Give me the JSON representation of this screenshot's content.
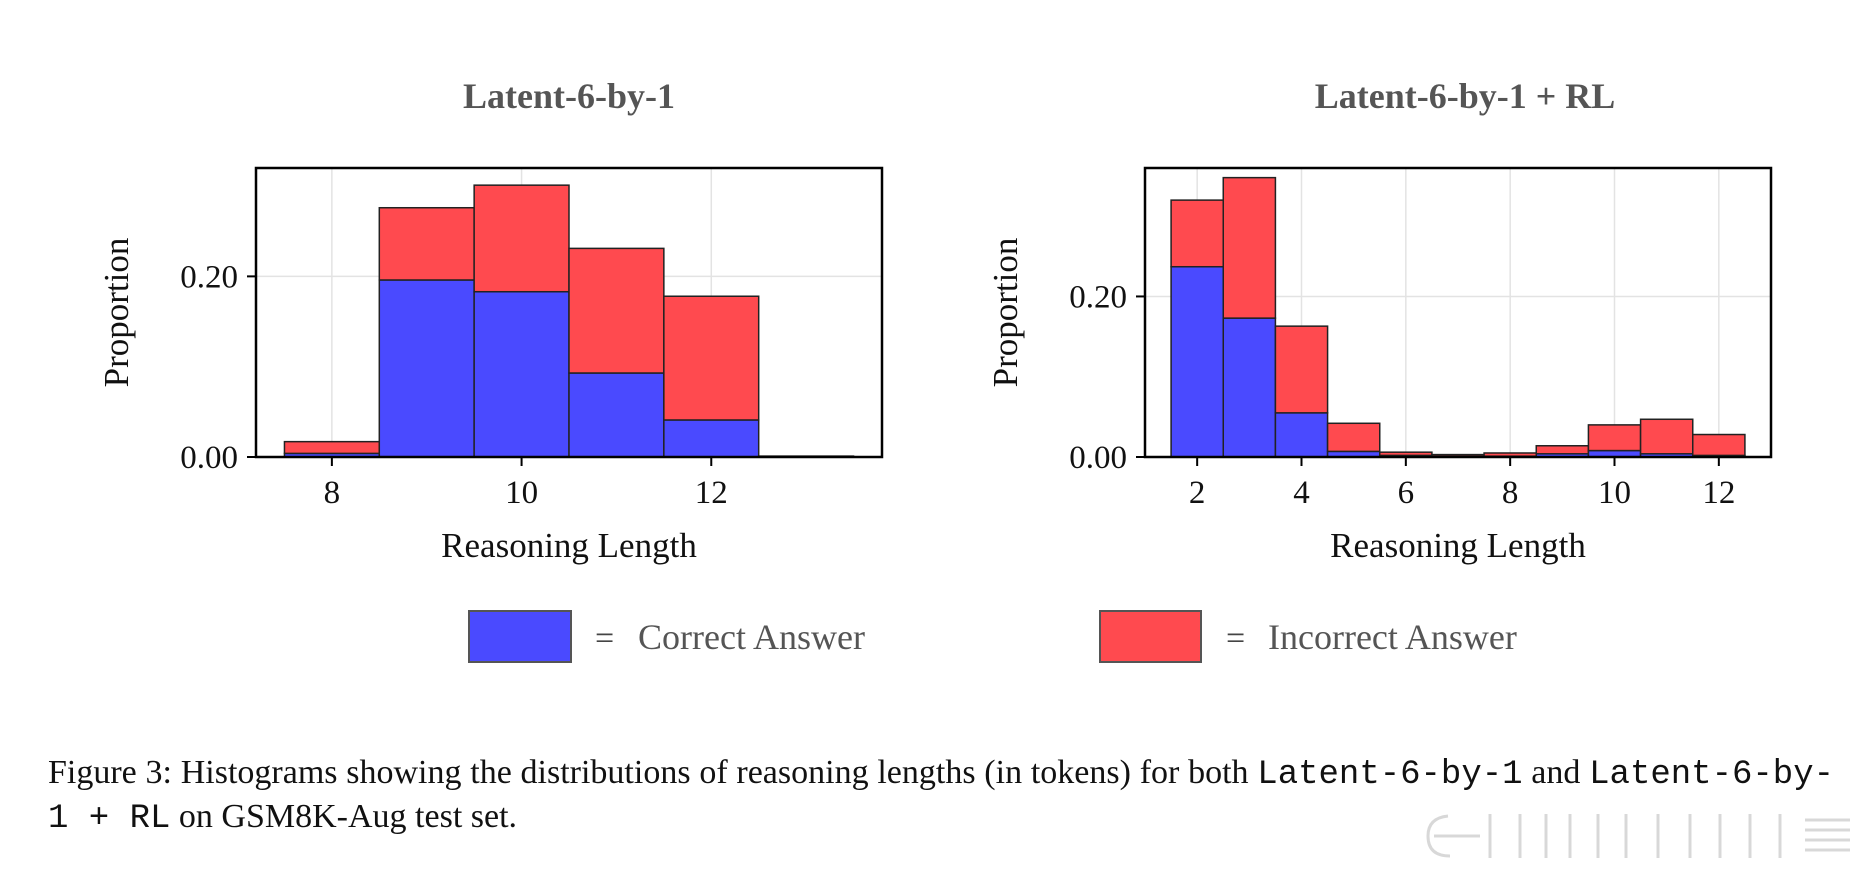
{
  "chart_data": [
    {
      "type": "bar",
      "stacked": true,
      "title": "Latent-6-by-1",
      "xlabel": "Reasoning Length",
      "ylabel": "Proportion",
      "xlim": [
        7.2,
        13.8
      ],
      "ylim": [
        0,
        0.32
      ],
      "xticks": [
        "8",
        "10",
        "12"
      ],
      "xtick_values": [
        8,
        10,
        12
      ],
      "yticks": [
        "0.00",
        "0.20"
      ],
      "ytick_values": [
        0.0,
        0.2
      ],
      "grid": true,
      "categories": [
        8,
        9,
        10,
        11,
        12,
        13
      ],
      "series": [
        {
          "name": "Correct Answer",
          "values": [
            0.004,
            0.196,
            0.183,
            0.093,
            0.041,
            0.0
          ]
        },
        {
          "name": "Incorrect Answer",
          "values": [
            0.013,
            0.08,
            0.118,
            0.138,
            0.137,
            0.001
          ]
        }
      ]
    },
    {
      "type": "bar",
      "stacked": true,
      "title": "Latent-6-by-1 + RL",
      "xlabel": "Reasoning Length",
      "ylabel": "Proportion",
      "xlim": [
        1.0,
        13.0
      ],
      "ylim": [
        0,
        0.36
      ],
      "xticks": [
        "2",
        "4",
        "6",
        "8",
        "10",
        "12"
      ],
      "xtick_values": [
        2,
        4,
        6,
        8,
        10,
        12
      ],
      "yticks": [
        "0.00",
        "0.20"
      ],
      "ytick_values": [
        0.0,
        0.2
      ],
      "grid": true,
      "categories": [
        2,
        3,
        4,
        5,
        6,
        7,
        8,
        9,
        10,
        11,
        12
      ],
      "series": [
        {
          "name": "Correct Answer",
          "values": [
            0.237,
            0.173,
            0.055,
            0.007,
            0.002,
            0.001,
            0.001,
            0.004,
            0.008,
            0.004,
            0.002
          ]
        },
        {
          "name": "Incorrect Answer",
          "values": [
            0.083,
            0.175,
            0.108,
            0.035,
            0.004,
            0.002,
            0.004,
            0.01,
            0.032,
            0.043,
            0.026
          ]
        }
      ]
    }
  ],
  "legend": {
    "items": [
      {
        "label": "Correct Answer",
        "color": "#4a4aff"
      },
      {
        "label": "Incorrect Answer",
        "color": "#ff4a4f"
      }
    ],
    "separator": "="
  },
  "colors": {
    "correct": "#4a4aff",
    "incorrect": "#ff4a4f",
    "grid": "#e3e3e3",
    "edge": "#222222"
  },
  "caption": {
    "prefix": "Figure 3:  Histograms showing the distributions of reasoning lengths (in tokens) for both ",
    "model_a": "Latent-6-by-1",
    "middle": " and ",
    "model_b": "Latent-6-by-1 + RL",
    "suffix": " on GSM8K-Aug test set."
  }
}
